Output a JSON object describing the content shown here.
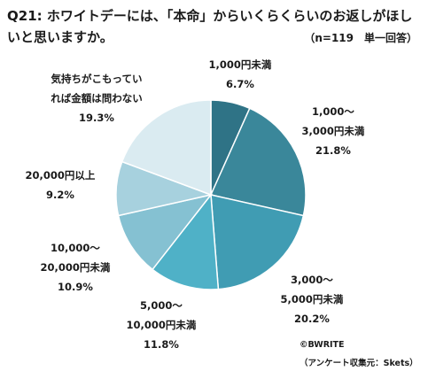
{
  "title": {
    "line1": "Q21: ホワイトデーには、「本命」からいくらくらいのお返しがほし",
    "line2": "いと思いますか。"
  },
  "note": "（n=119　単一回答）",
  "credit": {
    "copyright": "©BWRITE",
    "source": "（アンケート収集元：Skets）"
  },
  "chart_data": {
    "type": "pie",
    "slices": [
      {
        "label_lines": [
          "1,000円未満"
        ],
        "value": 6.7,
        "value_label": "6.7%",
        "color": "#2f7386"
      },
      {
        "label_lines": [
          "1,000～",
          "3,000円未満"
        ],
        "value": 21.8,
        "value_label": "21.8%",
        "color": "#3a879a"
      },
      {
        "label_lines": [
          "3,000～",
          "5,000円未満"
        ],
        "value": 20.2,
        "value_label": "20.2%",
        "color": "#409cb3"
      },
      {
        "label_lines": [
          "5,000～",
          "10,000円未満"
        ],
        "value": 11.8,
        "value_label": "11.8%",
        "color": "#4fb1c7"
      },
      {
        "label_lines": [
          "10,000～",
          "20,000円未満"
        ],
        "value": 10.9,
        "value_label": "10.9%",
        "color": "#85c1d2"
      },
      {
        "label_lines": [
          "20,000円以上"
        ],
        "value": 9.2,
        "value_label": "9.2%",
        "color": "#a7d1de"
      },
      {
        "label_lines": [
          "気持ちがこもってい",
          "れば金額は問わない"
        ],
        "value": 19.3,
        "value_label": "19.3%",
        "color": "#daebf1"
      }
    ]
  }
}
